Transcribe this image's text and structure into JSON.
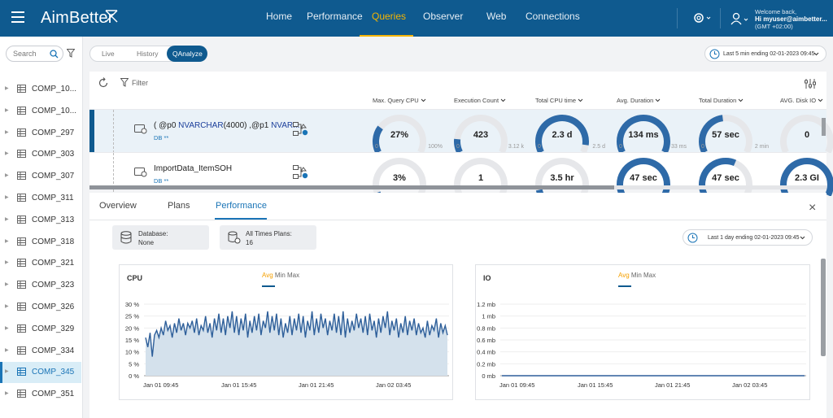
{
  "app": {
    "logo": "AimBetter",
    "welcome": "Welcome back,",
    "user": "Hi myuser@aimbetter...",
    "tz": "(GMT +02:00)"
  },
  "nav": [
    "Home",
    "Performance",
    "Queries",
    "Observer",
    "Web",
    "Connections"
  ],
  "sidebar": {
    "search_placeholder": "Search",
    "items": [
      "COMP_10...",
      "COMP_10...",
      "COMP_297",
      "COMP_303",
      "COMP_307",
      "COMP_311",
      "COMP_313",
      "COMP_318",
      "COMP_321",
      "COMP_323",
      "COMP_326",
      "COMP_329",
      "COMP_334",
      "COMP_345",
      "COMP_351"
    ]
  },
  "modes": {
    "live": "Live",
    "history": "History",
    "qanalyze": "QAnalyze"
  },
  "time_top": "Last 5 min ending  02-01-2023 09:45",
  "toolbar": {
    "filter": "Filter"
  },
  "columns": [
    "Max. Query CPU",
    "Execution Count",
    "Total CPU time",
    "Avg. Duration",
    "Total Duration",
    "AVG. Disk IO"
  ],
  "rows": [
    {
      "q1": "( @p0 ",
      "q2": "NVARCHAR",
      "q3": "(4000) ,@p1 ",
      "q4": "NVAR...",
      "db": "DB **",
      "g": [
        {
          "v": "27%",
          "min": "0",
          "max": "100%",
          "f": 0.27
        },
        {
          "v": "423",
          "min": "0",
          "max": "3.12 k",
          "f": 0.14
        },
        {
          "v": "2.3 d",
          "min": "0",
          "max": "2.5 d",
          "f": 0.92
        },
        {
          "v": "134 ms",
          "min": "0",
          "max": "33 ms",
          "f": 1.0
        },
        {
          "v": "57 sec",
          "min": "0",
          "max": "2 min",
          "f": 0.47
        },
        {
          "v": "0",
          "min": "0",
          "max": "",
          "f": 0.0
        }
      ]
    },
    {
      "q1": "ImportData_ItemSOH",
      "q2": "",
      "q3": "",
      "q4": "",
      "db": "DB **",
      "g": [
        {
          "v": "3%",
          "f": 0.03
        },
        {
          "v": "1",
          "f": 0.0
        },
        {
          "v": "3.5 hr",
          "f": 0.06
        },
        {
          "v": "47 sec",
          "f": 1.0
        },
        {
          "v": "47 sec",
          "f": 0.6
        },
        {
          "v": "2.3 GI",
          "f": 1.0
        }
      ]
    }
  ],
  "detail": {
    "tabs": [
      "Overview",
      "Plans",
      "Performance"
    ],
    "database_label": "Database:",
    "database_value": "None",
    "plans_label": "All Times Plans:",
    "plans_value": "16",
    "time": "Last 1 day ending  02-01-2023 09:45",
    "close": "×"
  },
  "chart_data": [
    {
      "type": "area",
      "title": "CPU",
      "legend": [
        "Avg",
        "Min",
        "Max"
      ],
      "y_ticks": [
        "30 %",
        "25 %",
        "20 %",
        "15 %",
        "10 %",
        "5 %",
        "0 %"
      ],
      "ylim": [
        0,
        30
      ],
      "x_ticks": [
        "Jan 01 09:45",
        "Jan 01 15:45",
        "Jan 01 21:45",
        "Jan 02 03:45"
      ],
      "values": [
        16,
        12,
        18,
        8,
        17,
        19,
        16,
        20,
        17,
        23,
        19,
        21,
        16,
        22,
        18,
        24,
        19,
        22,
        17,
        22,
        20,
        23,
        18,
        24,
        17,
        21,
        19,
        25,
        18,
        22,
        16,
        24,
        19,
        26,
        18,
        24,
        17,
        25,
        20,
        27,
        18,
        25,
        17,
        24,
        19,
        26,
        16,
        23,
        18,
        25,
        19,
        26,
        17,
        23,
        20,
        27,
        18,
        25,
        19,
        26,
        17,
        24,
        16,
        22,
        18,
        25,
        17,
        24,
        19,
        26,
        18,
        25,
        16,
        23,
        19,
        27,
        17,
        24,
        18,
        26,
        20,
        24,
        17,
        23,
        19,
        26,
        18,
        25,
        17,
        27,
        16,
        24,
        18,
        23,
        19,
        26,
        20,
        24,
        18,
        25,
        17,
        26,
        19,
        23,
        16,
        24,
        18,
        25,
        20,
        27,
        17,
        23,
        19,
        24,
        16,
        22,
        18,
        25,
        17,
        23,
        19,
        24,
        17,
        22,
        18,
        20,
        16,
        23,
        17,
        21,
        19,
        24,
        16,
        22,
        18,
        21,
        17
      ]
    },
    {
      "type": "line",
      "title": "IO",
      "legend": [
        "Avg",
        "Min",
        "Max"
      ],
      "y_ticks": [
        "1.2 mb",
        "1 mb",
        "0.8 mb",
        "0.6 mb",
        "0.4 mb",
        "0.2 mb",
        "0 mb"
      ],
      "ylim": [
        0,
        1.2
      ],
      "x_ticks": [
        "Jan 01 09:45",
        "Jan 01 15:45",
        "Jan 01 21:45",
        "Jan 02 03:45"
      ],
      "values": [
        0,
        0,
        0,
        0,
        0,
        0,
        0,
        0,
        0,
        0
      ]
    }
  ],
  "colors": {
    "brand": "#0f5a8f",
    "accent": "#f5b400"
  }
}
